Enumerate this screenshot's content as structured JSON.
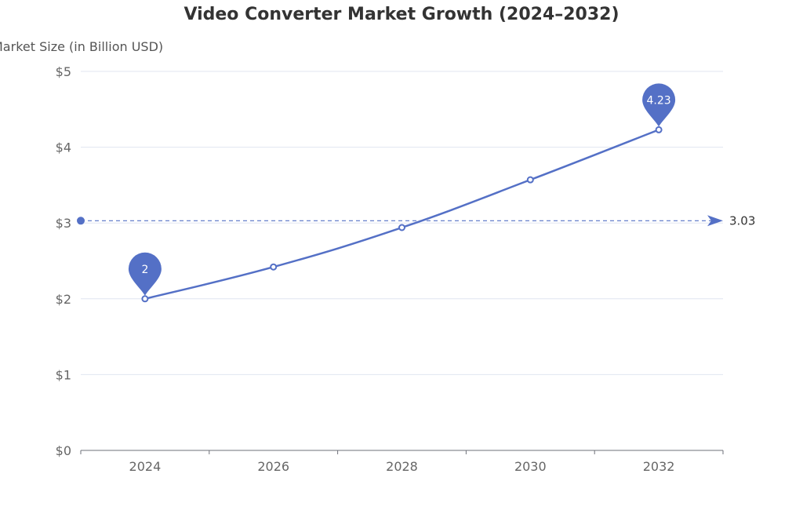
{
  "chart_data": {
    "type": "line",
    "title": "Video Converter Market Growth (2024–2032)",
    "ylabel": "Market Size (in Billion USD)",
    "xlabel": "",
    "categories": [
      "2024",
      "2026",
      "2028",
      "2030",
      "2032"
    ],
    "series": [
      {
        "name": "Market Size",
        "values": [
          2.0,
          2.42,
          2.94,
          3.57,
          4.23
        ]
      }
    ],
    "ylim": [
      0,
      5
    ],
    "yticks": [
      0,
      1,
      2,
      3,
      4,
      5
    ],
    "ytick_labels": [
      "$0",
      "$1",
      "$2",
      "$3",
      "$4",
      "$5"
    ],
    "mark_points": [
      {
        "label": "2",
        "category": "2024",
        "value": 2.0
      },
      {
        "label": "4.23",
        "category": "2032",
        "value": 4.23
      }
    ],
    "mark_line": {
      "label": "3.03",
      "value": 3.03,
      "kind": "average"
    },
    "grid": true,
    "colors": {
      "series": "#5470c6",
      "grid": "#e0e6f1",
      "axis": "#6e7079"
    }
  }
}
